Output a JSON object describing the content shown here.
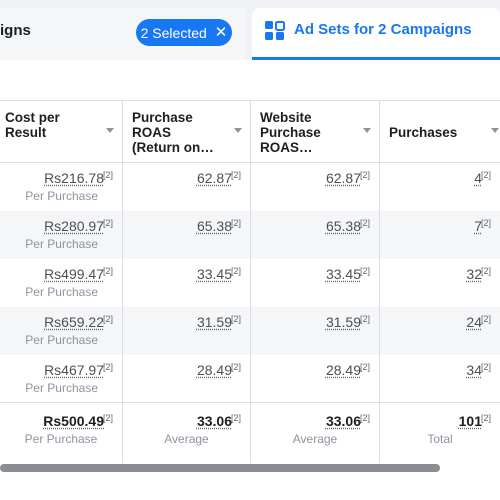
{
  "tabs": {
    "left_title": "igns",
    "selected_chip": "2 Selected",
    "chip_close_icon": "close-icon",
    "active_title": "Ad Sets for 2 Campaigns",
    "active_icon": "grid-icon"
  },
  "columns": [
    {
      "label_lines": [
        "Cost per",
        "Result"
      ]
    },
    {
      "label_lines": [
        "Purchase",
        "ROAS",
        "(Return on…"
      ]
    },
    {
      "label_lines": [
        "Website",
        "Purchase",
        "ROAS…"
      ]
    },
    {
      "label_lines": [
        "Purchases"
      ]
    }
  ],
  "footnote": "[2]",
  "rows": [
    {
      "cost": "Rs216.78",
      "cost_sub": "Per Purchase",
      "roas": "62.87",
      "web_roas": "62.87",
      "purchases": "4"
    },
    {
      "cost": "Rs280.97",
      "cost_sub": "Per Purchase",
      "roas": "65.38",
      "web_roas": "65.38",
      "purchases": "7"
    },
    {
      "cost": "Rs499.47",
      "cost_sub": "Per Purchase",
      "roas": "33.45",
      "web_roas": "33.45",
      "purchases": "32"
    },
    {
      "cost": "Rs659.22",
      "cost_sub": "Per Purchase",
      "roas": "31.59",
      "web_roas": "31.59",
      "purchases": "24"
    },
    {
      "cost": "Rs467.97",
      "cost_sub": "Per Purchase",
      "roas": "28.49",
      "web_roas": "28.49",
      "purchases": "34"
    }
  ],
  "totals": {
    "cost": "Rs500.49",
    "cost_sub": "Per Purchase",
    "roas": "33.06",
    "roas_sub": "Average",
    "web_roas": "33.06",
    "web_roas_sub": "Average",
    "purchases": "101",
    "purchases_sub": "Total"
  },
  "colors": {
    "accent": "#1877f2"
  }
}
